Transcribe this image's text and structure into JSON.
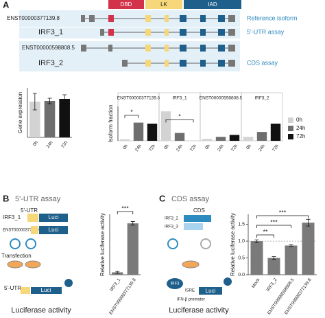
{
  "panel_a": {
    "label": "A",
    "domains": [
      "DBD",
      "LK",
      "IAD"
    ],
    "rows": [
      "ENST00000377139.8",
      "IRF3_1",
      "ENST00000598808.5",
      "IRF3_2"
    ],
    "notes": [
      "Reference isoform",
      "5'-UTR assay",
      "CDS assay"
    ]
  },
  "panel_b": {
    "label": "B",
    "title": "5'-UTR assay",
    "utr": "5'-UTR",
    "constructs": [
      "IRF3_1",
      "ENST00000377139.8"
    ],
    "reporter": "Luci",
    "transfection": "Transfection",
    "readout": "Luciferase activity"
  },
  "panel_c": {
    "label": "C",
    "title": "CDS assay",
    "cds": "CDS",
    "constructs": [
      "IRF3_2",
      "IRF3_3"
    ],
    "factor": "IRF3",
    "element": "ISRE",
    "promoter": "IFN-β promoter",
    "reporter": "Luci",
    "readout": "Luciferase activity"
  },
  "chart_data": [
    {
      "type": "bar",
      "ylabel": "Gene expression",
      "categories": [
        "0h",
        "24h",
        "72h"
      ],
      "values": [
        26,
        26.5,
        28
      ],
      "errors": [
        6,
        2,
        3
      ],
      "colors": [
        "#d3d3d3",
        "#6e6e6e",
        "#111111"
      ],
      "ylim": [
        0,
        36
      ]
    },
    {
      "type": "facet-bar",
      "ylabel": "Isoform fraction",
      "categories": [
        "0h",
        "24h",
        "72h"
      ],
      "colors": [
        "#d3d3d3",
        "#6e6e6e",
        "#111111"
      ],
      "ylim": [
        0,
        0.7
      ],
      "facets": [
        {
          "title": "ENST00000377139.8",
          "values": [
            0.03,
            0.37,
            0.35
          ],
          "annotation": "*"
        },
        {
          "title": "IRF3_1",
          "values": [
            0.6,
            0.16,
            0
          ],
          "annotation": "*"
        },
        {
          "title": "ENST00000598808.5",
          "values": [
            0.04,
            0.08,
            0.12
          ]
        },
        {
          "title": "IRF3_2",
          "values": [
            0.08,
            0.18,
            0.35
          ]
        }
      ]
    },
    {
      "type": "bar",
      "ylabel": "Relative luciferase activity",
      "categories": [
        "IRF3_1",
        "ENST00000377139.8"
      ],
      "values": [
        0.8,
        17
      ],
      "errors": [
        0.3,
        0.6
      ],
      "colors": [
        "#7a7a7a",
        "#7a7a7a"
      ],
      "ylim": [
        0,
        20
      ],
      "annotations": [
        "***"
      ]
    },
    {
      "type": "bar",
      "ylabel": "Relative luciferase activity",
      "categories": [
        "Mock",
        "IRF3_2",
        "ENST00000598808.5",
        "ENST00000377139.8"
      ],
      "values": [
        1.0,
        0.5,
        0.87,
        1.55
      ],
      "errors": [
        0.04,
        0.04,
        0.03,
        0.1
      ],
      "colors": [
        "#7a7a7a",
        "#7a7a7a",
        "#7a7a7a",
        "#7a7a7a"
      ],
      "ylim": [
        0,
        1.8
      ],
      "yticks": [
        {
          "value": 0,
          "label": "0.0"
        },
        0.5,
        {
          "value": 1,
          "label": "1.0"
        },
        1.5
      ],
      "refline": 1,
      "annotations": [
        "**",
        "***",
        "***"
      ]
    }
  ]
}
